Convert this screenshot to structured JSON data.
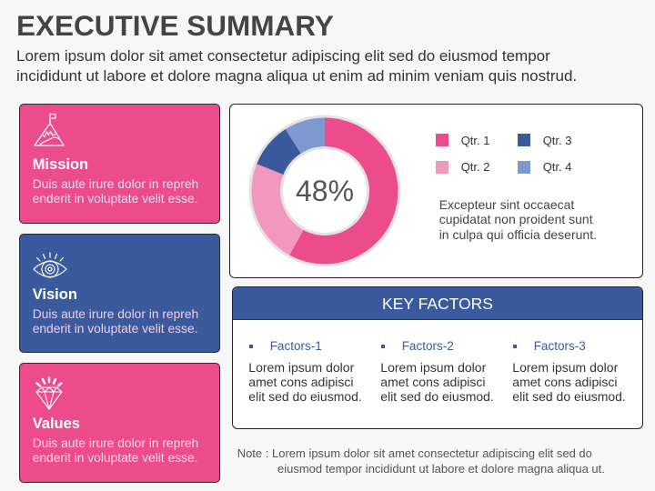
{
  "slide": {
    "title": "EXECUTIVE SUMMARY",
    "subtitle_lines": [
      "Lorem ipsum dolor sit amet consectetur adipiscing elit sed do eiusmod tempor",
      "incididunt ut labore et dolore magna aliqua ut enim ad minim veniam quis nostrud."
    ]
  },
  "colors": {
    "pink": "#EC4C8B",
    "light_pink": "#F398BD",
    "blue": "#3B5A9E",
    "light_blue": "#7E98D0",
    "background": "#F7F7F7",
    "title": "#444444"
  },
  "cards": [
    {
      "title": "Mission",
      "icon": "mountain-flag-icon",
      "color": "#EC4C8B",
      "desc_lines": [
        "Duis aute irure dolor in repreh",
        "enderit in voluptate velit esse."
      ]
    },
    {
      "title": "Vision",
      "icon": "eye-gear-icon",
      "color": "#3B5A9E",
      "desc_lines": [
        "Duis aute irure dolor in repreh",
        "enderit in voluptate velit esse."
      ]
    },
    {
      "title": "Values",
      "icon": "diamond-icon",
      "color": "#EC4C8B",
      "desc_lines": [
        "Duis aute irure dolor in repreh",
        "enderit in voluptate velit esse."
      ]
    }
  ],
  "chart_panel": {
    "center_label": "48%",
    "legend": [
      {
        "label": "Qtr. 1",
        "color": "#EC4C8B"
      },
      {
        "label": "Qtr. 2",
        "color": "#F398BD"
      },
      {
        "label": "Qtr. 3",
        "color": "#3B5A9E"
      },
      {
        "label": "Qtr. 4",
        "color": "#7E98D0"
      }
    ],
    "desc_lines": [
      "Excepteur sint occaecat",
      "cupidatat non proident sunt",
      "in culpa qui officia deserunt."
    ]
  },
  "key_factors": {
    "title": "KEY FACTORS",
    "items": [
      {
        "label": "Factors-1",
        "lines": [
          "Lorem ipsum dolor",
          "amet cons adipisci",
          "elit sed do eiusmod."
        ]
      },
      {
        "label": "Factors-2",
        "lines": [
          "Lorem ipsum dolor",
          "amet cons adipisci",
          "elit sed do eiusmod."
        ]
      },
      {
        "label": "Factors-3",
        "lines": [
          "Lorem ipsum dolor",
          "amet cons adipisci",
          "elit sed do eiusmod."
        ]
      }
    ]
  },
  "note": {
    "lines": [
      "Note : Lorem ipsum dolor sit amet consectetur adipiscing elit sed do",
      "eiusmod tempor incididunt ut labore et dolore magna aliqua ut."
    ]
  },
  "chart_data": {
    "type": "pie",
    "variant": "donut",
    "title": "",
    "center_annotation": "48%",
    "categories": [
      "Qtr. 1",
      "Qtr. 2",
      "Qtr. 3",
      "Qtr. 4"
    ],
    "values": [
      58,
      23,
      10,
      9
    ],
    "colors": [
      "#EC4C8B",
      "#F398BD",
      "#3B5A9E",
      "#7E98D0"
    ],
    "start_angle": "12 o'clock, clockwise",
    "legend_position": "right",
    "legend_entries": [
      "Qtr. 1",
      "Qtr. 2",
      "Qtr. 3",
      "Qtr. 4"
    ]
  }
}
